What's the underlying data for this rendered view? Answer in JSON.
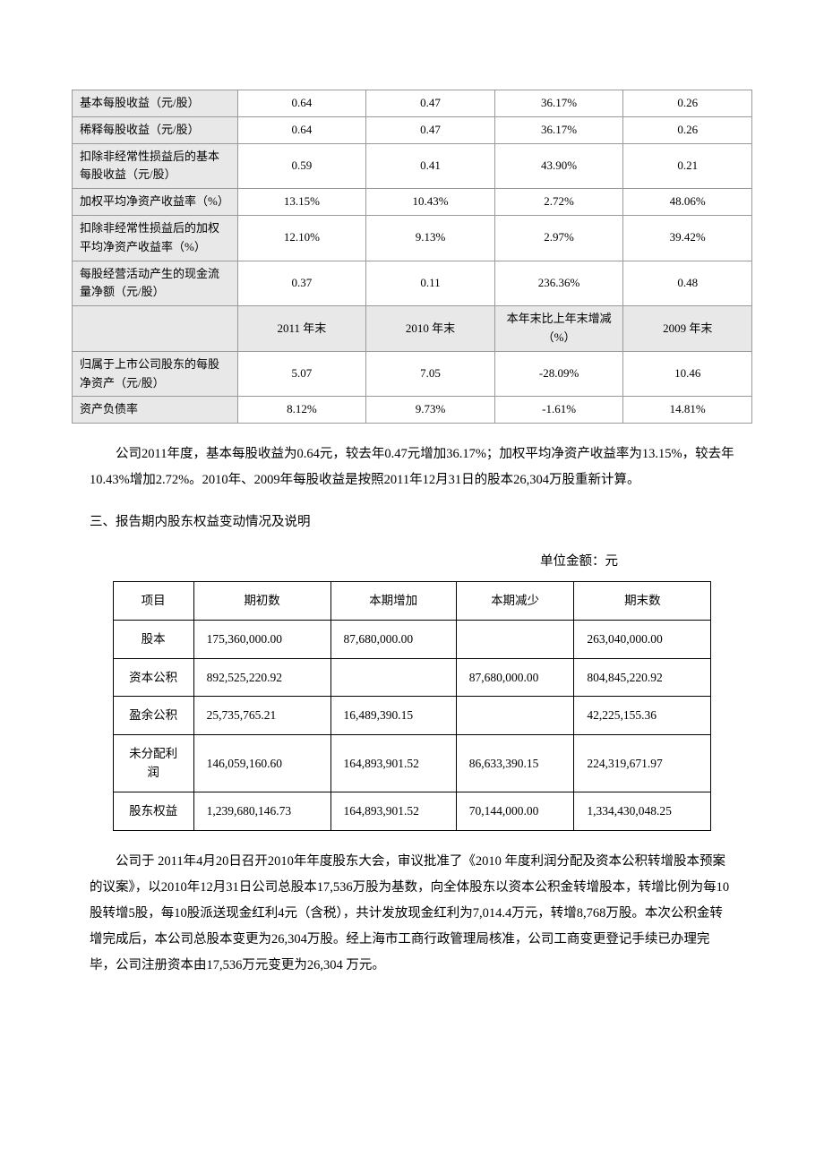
{
  "table1": {
    "rows": [
      {
        "label": "基本每股收益（元/股）",
        "v1": "0.64",
        "v2": "0.47",
        "v3": "36.17%",
        "v4": "0.26"
      },
      {
        "label": "稀释每股收益（元/股）",
        "v1": "0.64",
        "v2": "0.47",
        "v3": "36.17%",
        "v4": "0.26"
      },
      {
        "label": "扣除非经常性损益后的基本每股收益（元/股）",
        "v1": "0.59",
        "v2": "0.41",
        "v3": "43.90%",
        "v4": "0.21"
      },
      {
        "label": "加权平均净资产收益率（%）",
        "v1": "13.15%",
        "v2": "10.43%",
        "v3": "2.72%",
        "v4": "48.06%"
      },
      {
        "label": "扣除非经常性损益后的加权平均净资产收益率（%）",
        "v1": "12.10%",
        "v2": "9.13%",
        "v3": "2.97%",
        "v4": "39.42%"
      },
      {
        "label": "每股经营活动产生的现金流量净额（元/股）",
        "v1": "0.37",
        "v2": "0.11",
        "v3": "236.36%",
        "v4": "0.48"
      }
    ],
    "header2": {
      "c1": "",
      "c2": "2011 年末",
      "c3": "2010 年末",
      "c4": "本年末比上年末增减（%）",
      "c5": "2009 年末"
    },
    "rows2": [
      {
        "label": "归属于上市公司股东的每股净资产（元/股）",
        "v1": "5.07",
        "v2": "7.05",
        "v3": "-28.09%",
        "v4": "10.46"
      },
      {
        "label": "资产负债率",
        "v1": "8.12%",
        "v2": "9.73%",
        "v3": "-1.61%",
        "v4": "14.81%"
      }
    ]
  },
  "para1": "公司2011年度，基本每股收益为0.64元，较去年0.47元增加36.17%；加权平均净资产收益率为13.15%，较去年10.43%增加2.72%。2010年、2009年每股收益是按照2011年12月31日的股本26,304万股重新计算。",
  "section_title": "三、报告期内股东权益变动情况及说明",
  "unit_label": "单位金额：元",
  "table2": {
    "headers": [
      "项目",
      "期初数",
      "本期增加",
      "本期减少",
      "期末数"
    ],
    "rows": [
      {
        "label": "股本",
        "v1": "175,360,000.00",
        "v2": "87,680,000.00",
        "v3": "",
        "v4": "263,040,000.00"
      },
      {
        "label": "资本公积",
        "v1": "892,525,220.92",
        "v2": "",
        "v3": "87,680,000.00",
        "v4": "804,845,220.92"
      },
      {
        "label": "盈余公积",
        "v1": "25,735,765.21",
        "v2": "16,489,390.15",
        "v3": "",
        "v4": "42,225,155.36"
      },
      {
        "label": "未分配利润",
        "v1": "146,059,160.60",
        "v2": "164,893,901.52",
        "v3": "86,633,390.15",
        "v4": "224,319,671.97"
      },
      {
        "label": "股东权益",
        "v1": "1,239,680,146.73",
        "v2": "164,893,901.52",
        "v3": "70,144,000.00",
        "v4": "1,334,430,048.25"
      }
    ]
  },
  "para2": "公司于 2011年4月20日召开2010年年度股东大会，审议批准了《2010 年度利润分配及资本公积转增股本预案的议案》，以2010年12月31日公司总股本17,536万股为基数，向全体股东以资本公积金转增股本，转增比例为每10股转增5股，每10股派送现金红利4元（含税），共计发放现金红利为7,014.4万元，转增8,768万股。本次公积金转增完成后，本公司总股本变更为26,304万股。经上海市工商行政管理局核准，公司工商变更登记手续已办理完毕，公司注册资本由17,536万元变更为26,304 万元。"
}
